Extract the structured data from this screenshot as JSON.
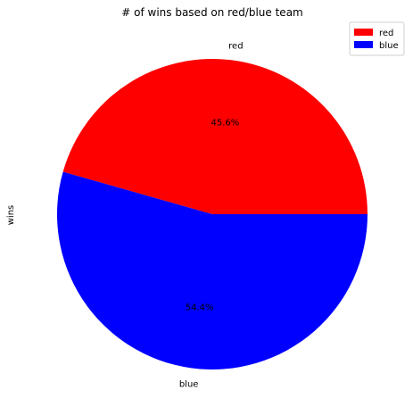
{
  "chart_data": {
    "type": "pie",
    "title": "# of wins based on red/blue team",
    "ylabel": "wins",
    "categories": [
      "red",
      "blue"
    ],
    "values": [
      45.6,
      54.4
    ],
    "value_labels": [
      "45.6%",
      "54.4%"
    ],
    "colors": [
      "#ff0000",
      "#0000ff"
    ],
    "legend": {
      "entries": [
        "red",
        "blue"
      ],
      "placement": "top-right"
    },
    "start_angle_deg": 0,
    "direction": "counterclockwise"
  }
}
